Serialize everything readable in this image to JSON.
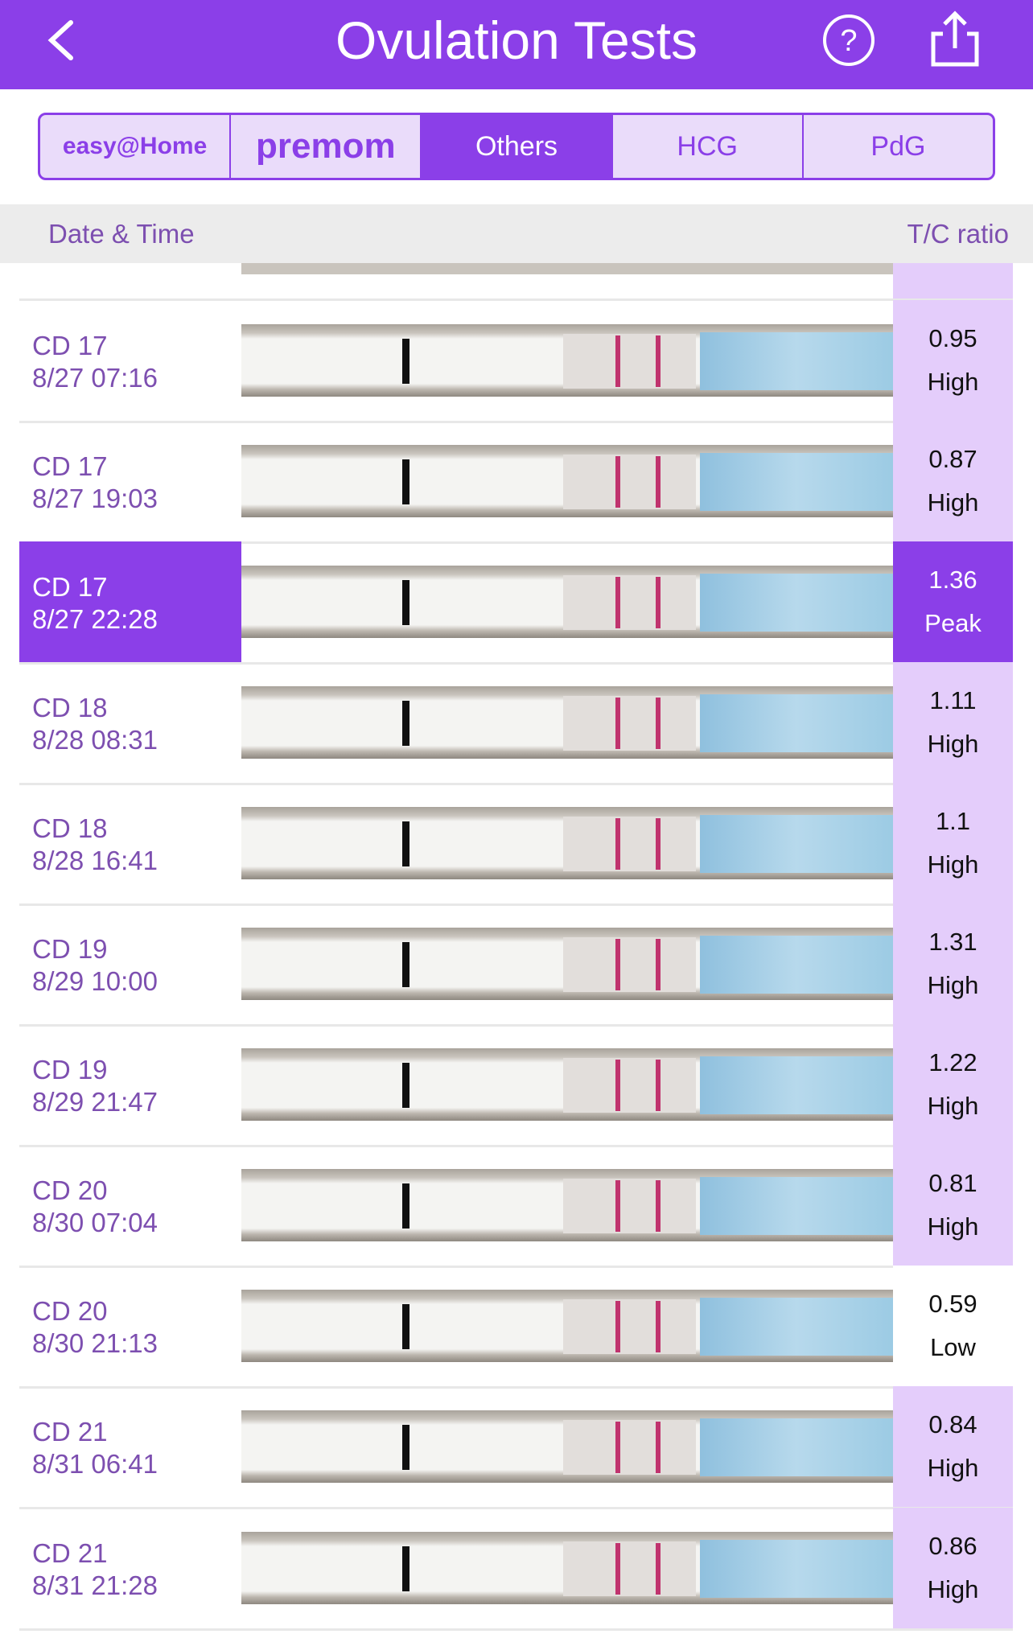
{
  "header": {
    "title": "Ovulation Tests"
  },
  "tabs": [
    "easy@Home",
    "premom",
    "Others",
    "HCG",
    "PdG"
  ],
  "columns": {
    "left": "Date & Time",
    "right": "T/C ratio"
  },
  "rows": [
    {
      "cd": "CD 17",
      "datetime": "8/27 07:16",
      "ratio": 0.95,
      "level": "High"
    },
    {
      "cd": "CD 17",
      "datetime": "8/27 19:03",
      "ratio": 0.87,
      "level": "High"
    },
    {
      "cd": "CD 17",
      "datetime": "8/27 22:28",
      "ratio": 1.36,
      "level": "Peak"
    },
    {
      "cd": "CD 18",
      "datetime": "8/28 08:31",
      "ratio": 1.11,
      "level": "High"
    },
    {
      "cd": "CD 18",
      "datetime": "8/28 16:41",
      "ratio": 1.1,
      "level": "High"
    },
    {
      "cd": "CD 19",
      "datetime": "8/29 10:00",
      "ratio": 1.31,
      "level": "High"
    },
    {
      "cd": "CD 19",
      "datetime": "8/29 21:47",
      "ratio": 1.22,
      "level": "High"
    },
    {
      "cd": "CD 20",
      "datetime": "8/30 07:04",
      "ratio": 0.81,
      "level": "High"
    },
    {
      "cd": "CD 20",
      "datetime": "8/30 21:13",
      "ratio": 0.59,
      "level": "Low"
    },
    {
      "cd": "CD 21",
      "datetime": "8/31 06:41",
      "ratio": 0.84,
      "level": "High"
    },
    {
      "cd": "CD 21",
      "datetime": "8/31 21:28",
      "ratio": 0.86,
      "level": "High"
    }
  ]
}
